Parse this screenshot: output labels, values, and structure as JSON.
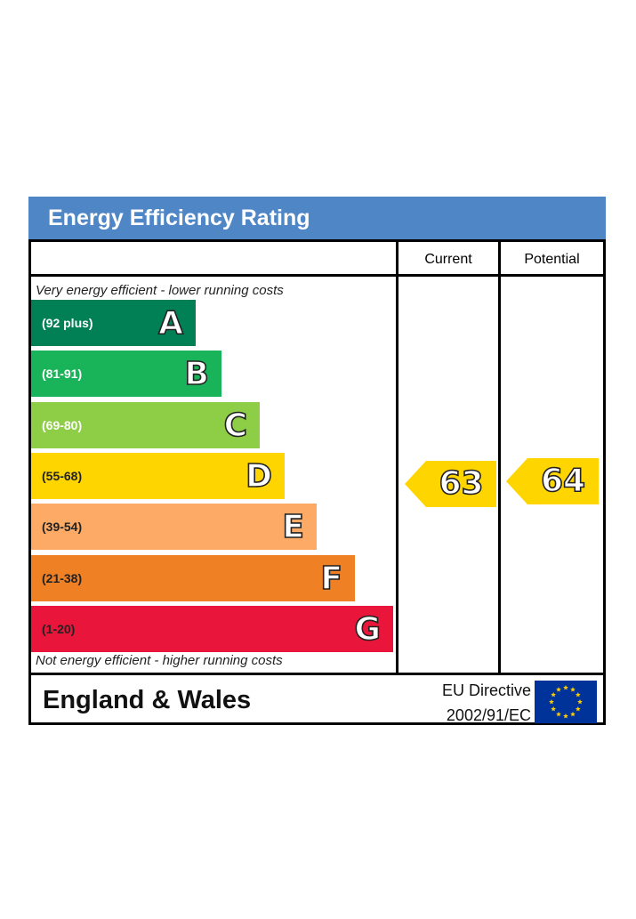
{
  "title": "Energy Efficiency Rating",
  "columns": {
    "current": "Current",
    "potential": "Potential"
  },
  "captions": {
    "top": "Very energy efficient - lower running costs",
    "bottom": "Not energy efficient - higher running costs"
  },
  "footer": {
    "region": "England & Wales",
    "directive_line1": "EU Directive",
    "directive_line2": "2002/91/EC",
    "flag": "eu-flag-icon"
  },
  "chart_data": {
    "type": "bar",
    "categories": [
      "A",
      "B",
      "C",
      "D",
      "E",
      "F",
      "G"
    ],
    "ranges": [
      "(92 plus)",
      "(81-91)",
      "(69-80)",
      "(55-68)",
      "(39-54)",
      "(21-38)",
      "(1-20)"
    ],
    "band_colors": [
      "#008054",
      "#19b459",
      "#8dce46",
      "#ffd500",
      "#fcaa65",
      "#ef8023",
      "#e9153b"
    ],
    "current": 63,
    "current_band": "D",
    "potential": 64,
    "potential_band": "D",
    "marker_color": "#ffd500"
  }
}
